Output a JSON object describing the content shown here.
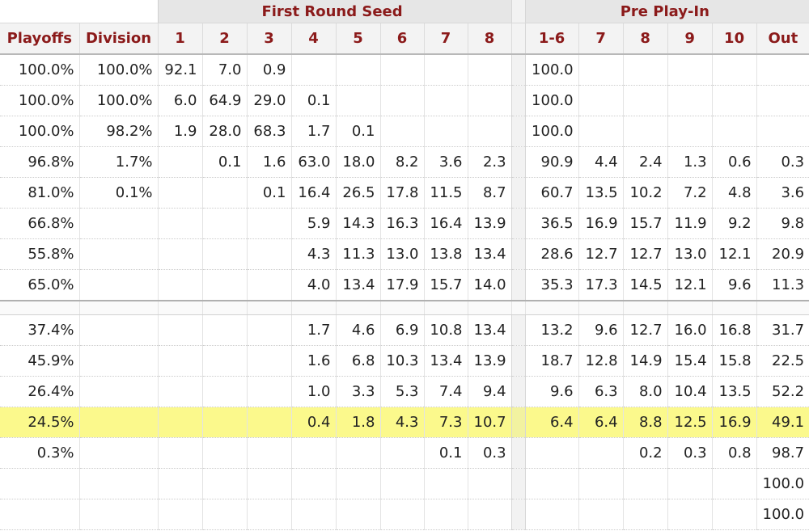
{
  "group_headers": {
    "first_round": "First Round Seed",
    "pre_play_in": "Pre Play-In"
  },
  "columns": {
    "playoffs": "Playoffs",
    "division": "Division",
    "seeds": [
      "1",
      "2",
      "3",
      "4",
      "5",
      "6",
      "7",
      "8"
    ],
    "pre": [
      "1-6",
      "7",
      "8",
      "9",
      "10",
      "Out"
    ]
  },
  "group1": [
    {
      "playoffs": "100.0%",
      "division": "100.0%",
      "seeds": [
        "92.1",
        "7.0",
        "0.9",
        "",
        "",
        "",
        "",
        ""
      ],
      "pre": [
        "100.0",
        "",
        "",
        "",
        "",
        ""
      ]
    },
    {
      "playoffs": "100.0%",
      "division": "100.0%",
      "seeds": [
        "6.0",
        "64.9",
        "29.0",
        "0.1",
        "",
        "",
        "",
        ""
      ],
      "pre": [
        "100.0",
        "",
        "",
        "",
        "",
        ""
      ]
    },
    {
      "playoffs": "100.0%",
      "division": "98.2%",
      "seeds": [
        "1.9",
        "28.0",
        "68.3",
        "1.7",
        "0.1",
        "",
        "",
        ""
      ],
      "pre": [
        "100.0",
        "",
        "",
        "",
        "",
        ""
      ]
    },
    {
      "playoffs": "96.8%",
      "division": "1.7%",
      "seeds": [
        "",
        "0.1",
        "1.6",
        "63.0",
        "18.0",
        "8.2",
        "3.6",
        "2.3"
      ],
      "pre": [
        "90.9",
        "4.4",
        "2.4",
        "1.3",
        "0.6",
        "0.3"
      ]
    },
    {
      "playoffs": "81.0%",
      "division": "0.1%",
      "seeds": [
        "",
        "",
        "0.1",
        "16.4",
        "26.5",
        "17.8",
        "11.5",
        "8.7"
      ],
      "pre": [
        "60.7",
        "13.5",
        "10.2",
        "7.2",
        "4.8",
        "3.6"
      ]
    },
    {
      "playoffs": "66.8%",
      "division": "",
      "seeds": [
        "",
        "",
        "",
        "5.9",
        "14.3",
        "16.3",
        "16.4",
        "13.9"
      ],
      "pre": [
        "36.5",
        "16.9",
        "15.7",
        "11.9",
        "9.2",
        "9.8"
      ]
    },
    {
      "playoffs": "55.8%",
      "division": "",
      "seeds": [
        "",
        "",
        "",
        "4.3",
        "11.3",
        "13.0",
        "13.8",
        "13.4"
      ],
      "pre": [
        "28.6",
        "12.7",
        "12.7",
        "13.0",
        "12.1",
        "20.9"
      ]
    },
    {
      "playoffs": "65.0%",
      "division": "",
      "seeds": [
        "",
        "",
        "",
        "4.0",
        "13.4",
        "17.9",
        "15.7",
        "14.0"
      ],
      "pre": [
        "35.3",
        "17.3",
        "14.5",
        "12.1",
        "9.6",
        "11.3"
      ]
    }
  ],
  "group2": [
    {
      "playoffs": "37.4%",
      "division": "",
      "seeds": [
        "",
        "",
        "",
        "1.7",
        "4.6",
        "6.9",
        "10.8",
        "13.4"
      ],
      "pre": [
        "13.2",
        "9.6",
        "12.7",
        "16.0",
        "16.8",
        "31.7"
      ]
    },
    {
      "playoffs": "45.9%",
      "division": "",
      "seeds": [
        "",
        "",
        "",
        "1.6",
        "6.8",
        "10.3",
        "13.4",
        "13.9"
      ],
      "pre": [
        "18.7",
        "12.8",
        "14.9",
        "15.4",
        "15.8",
        "22.5"
      ]
    },
    {
      "playoffs": "26.4%",
      "division": "",
      "seeds": [
        "",
        "",
        "",
        "1.0",
        "3.3",
        "5.3",
        "7.4",
        "9.4"
      ],
      "pre": [
        "9.6",
        "6.3",
        "8.0",
        "10.4",
        "13.5",
        "52.2"
      ]
    },
    {
      "playoffs": "24.5%",
      "division": "",
      "seeds": [
        "",
        "",
        "",
        "0.4",
        "1.8",
        "4.3",
        "7.3",
        "10.7"
      ],
      "pre": [
        "6.4",
        "6.4",
        "8.8",
        "12.5",
        "16.9",
        "49.1"
      ],
      "highlight": true
    },
    {
      "playoffs": "0.3%",
      "division": "",
      "seeds": [
        "",
        "",
        "",
        "",
        "",
        "",
        "0.1",
        "0.3"
      ],
      "pre": [
        "",
        "",
        "0.2",
        "0.3",
        "0.8",
        "98.7"
      ]
    },
    {
      "playoffs": "",
      "division": "",
      "seeds": [
        "",
        "",
        "",
        "",
        "",
        "",
        "",
        ""
      ],
      "pre": [
        "",
        "",
        "",
        "",
        "",
        "100.0"
      ]
    },
    {
      "playoffs": "",
      "division": "",
      "seeds": [
        "",
        "",
        "",
        "",
        "",
        "",
        "",
        ""
      ],
      "pre": [
        "",
        "",
        "",
        "",
        "",
        "100.0"
      ]
    }
  ]
}
